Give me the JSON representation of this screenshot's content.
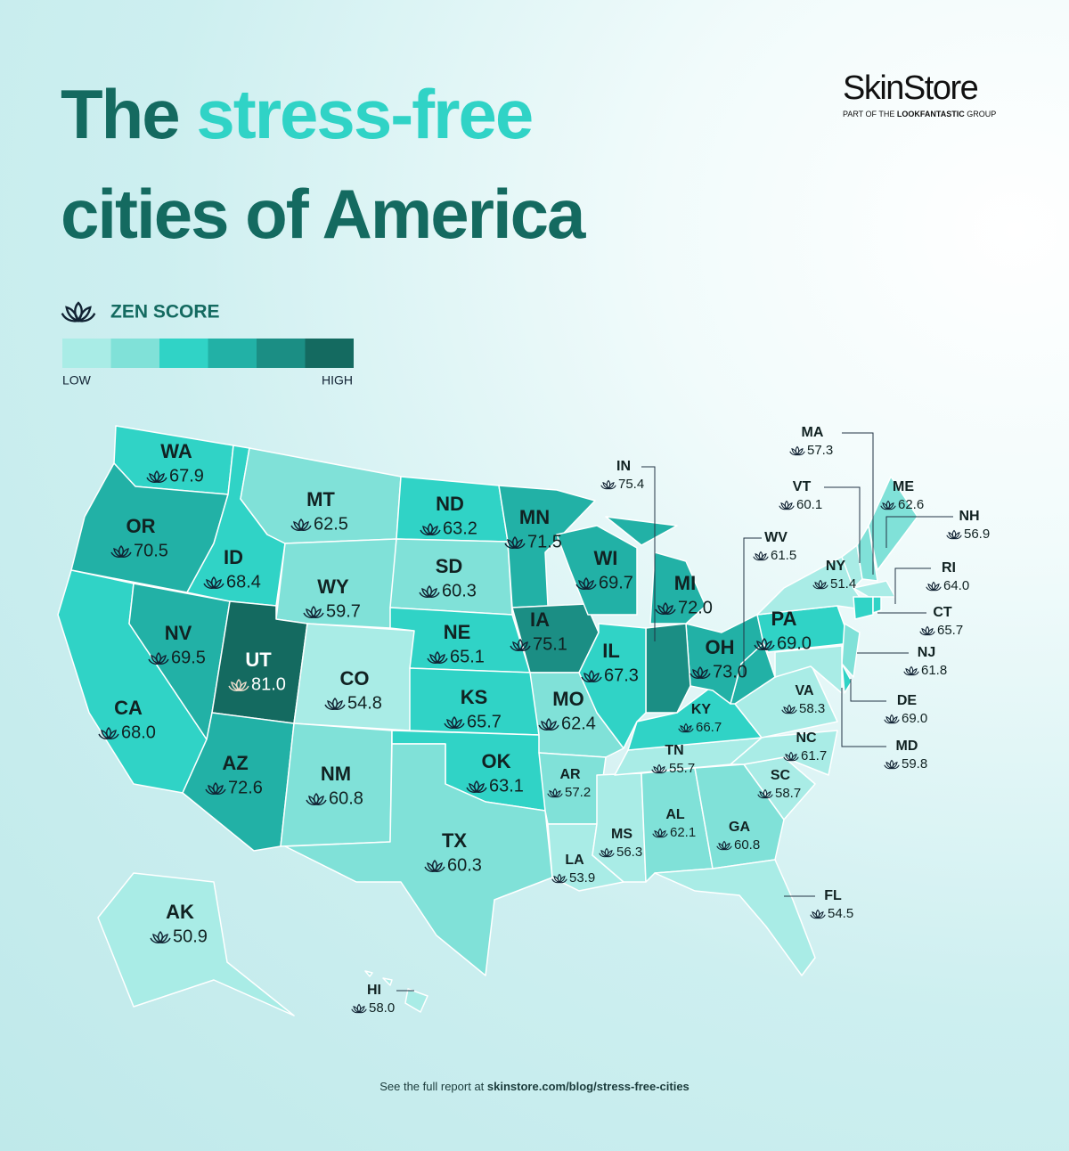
{
  "header": {
    "title": {
      "first": "The",
      "highlight": "stress-free",
      "second": "cities of America"
    },
    "brand": {
      "name": "SkinStore",
      "tagline_start": "PART OF THE",
      "tagline_bold": "LOOKFANTASTIC",
      "tagline_end": "GROUP"
    }
  },
  "legend": {
    "title": "ZEN SCORE",
    "low": "LOW",
    "high": "HIGH",
    "colors": [
      "#a9ece6",
      "#80e1d8",
      "#30d3c6",
      "#22b1a6",
      "#1b8e84",
      "#146a60"
    ]
  },
  "states": [
    {
      "code": "WA",
      "score": 67.9,
      "color": "#30d3c6"
    },
    {
      "code": "OR",
      "score": 70.5,
      "color": "#22b1a6"
    },
    {
      "code": "CA",
      "score": {
        "value": 68,
        "label": "68.0"
      },
      "color": "#30d3c6"
    },
    {
      "code": "NV",
      "score": 69.5,
      "color": "#22b1a6"
    },
    {
      "code": "ID",
      "score": 68.4,
      "color": "#30d3c6"
    },
    {
      "code": "MT",
      "score": 62.5,
      "color": "#80e1d8"
    },
    {
      "code": "WY",
      "score": 59.7,
      "color": "#80e1d8"
    },
    {
      "code": "UT",
      "score": {
        "value": 81,
        "label": "81.0"
      },
      "color": "#146a60"
    },
    {
      "code": "CO",
      "score": 54.8,
      "color": "#a9ece6"
    },
    {
      "code": "AZ",
      "score": 72.6,
      "color": "#22b1a6"
    },
    {
      "code": "NM",
      "score": 60.8,
      "color": "#80e1d8"
    },
    {
      "code": "ND",
      "score": 63.2,
      "color": "#30d3c6"
    },
    {
      "code": "SD",
      "score": 60.3,
      "color": "#80e1d8"
    },
    {
      "code": "NE",
      "score": 65.1,
      "color": "#30d3c6"
    },
    {
      "code": "KS",
      "score": 65.7,
      "color": "#30d3c6"
    },
    {
      "code": "OK",
      "score": 63.1,
      "color": "#30d3c6"
    },
    {
      "code": "TX",
      "score": 60.3,
      "color": "#80e1d8"
    },
    {
      "code": "MN",
      "score": 71.5,
      "color": "#22b1a6"
    },
    {
      "code": "IA",
      "score": 75.1,
      "color": "#1b8e84"
    },
    {
      "code": "MO",
      "score": 62.4,
      "color": "#80e1d8"
    },
    {
      "code": "AR",
      "score": 57.2,
      "color": "#80e1d8"
    },
    {
      "code": "LA",
      "score": 53.9,
      "color": "#a9ece6"
    },
    {
      "code": "MS",
      "score": 56.3,
      "color": "#a9ece6"
    },
    {
      "code": "AL",
      "score": 62.1,
      "color": "#80e1d8"
    },
    {
      "code": "GA",
      "score": 60.8,
      "color": "#80e1d8"
    },
    {
      "code": "FL",
      "score": 54.5,
      "color": "#a9ece6"
    },
    {
      "code": "SC",
      "score": 58.7,
      "color": "#a9ece6"
    },
    {
      "code": "NC",
      "score": 61.7,
      "color": "#a9ece6"
    },
    {
      "code": "TN",
      "score": 55.7,
      "color": "#a9ece6"
    },
    {
      "code": "KY",
      "score": 66.7,
      "color": "#30d3c6"
    },
    {
      "code": "VA",
      "score": 58.3,
      "color": "#a9ece6"
    },
    {
      "code": "WV",
      "score": 61.5,
      "color": "#22b1a6"
    },
    {
      "code": "OH",
      "score": {
        "value": 73,
        "label": "73.0"
      },
      "color": "#22b1a6"
    },
    {
      "code": "IN",
      "score": 75.4,
      "color": "#1b8e84"
    },
    {
      "code": "IL",
      "score": 67.3,
      "color": "#30d3c6"
    },
    {
      "code": "WI",
      "score": 69.7,
      "color": "#22b1a6"
    },
    {
      "code": "MI",
      "score": {
        "value": 72,
        "label": "72.0"
      },
      "color": "#22b1a6"
    },
    {
      "code": "PA",
      "score": {
        "value": 69,
        "label": "69.0"
      },
      "color": "#30d3c6"
    },
    {
      "code": "NY",
      "score": 51.4,
      "color": "#a9ece6"
    },
    {
      "code": "NJ",
      "score": 61.8,
      "color": "#80e1d8"
    },
    {
      "code": "DE",
      "score": {
        "value": 69,
        "label": "69.0"
      },
      "color": "#30d3c6"
    },
    {
      "code": "MD",
      "score": 59.8,
      "color": "#a9ece6"
    },
    {
      "code": "VT",
      "score": 60.1,
      "color": "#a9ece6"
    },
    {
      "code": "NH",
      "score": 56.9,
      "color": "#80e1d8"
    },
    {
      "code": "ME",
      "score": 62.6,
      "color": "#80e1d8"
    },
    {
      "code": "MA",
      "score": 57.3,
      "color": "#a9ece6"
    },
    {
      "code": "CT",
      "score": 65.7,
      "color": "#30d3c6"
    },
    {
      "code": "RI",
      "score": {
        "value": 64,
        "label": "64.0"
      },
      "color": "#30d3c6"
    },
    {
      "code": "AK",
      "score": 50.9,
      "color": "#a9ece6"
    },
    {
      "code": "HI",
      "score": {
        "value": 58,
        "label": "58.0"
      },
      "color": "#a9ece6"
    }
  ],
  "footer": {
    "text": "See the full report at",
    "link": "skinstore.com/blog/stress-free-cities"
  }
}
